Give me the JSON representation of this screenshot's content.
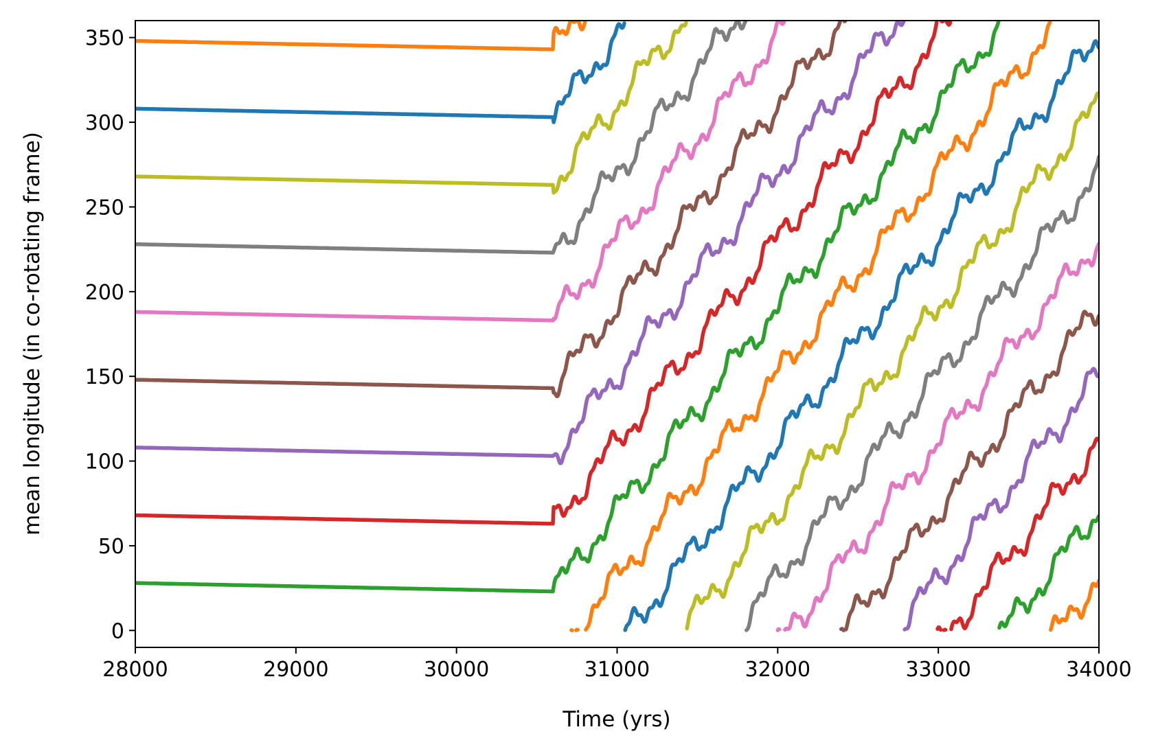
{
  "chart_data": {
    "type": "line",
    "title": "",
    "xlabel": "Time (yrs)",
    "ylabel": "mean longitude (in co-rotating frame)",
    "xlim": [
      28000,
      34000
    ],
    "ylim": [
      -10,
      360
    ],
    "xticks": [
      28000,
      29000,
      30000,
      31000,
      32000,
      33000,
      34000
    ],
    "yticks": [
      0,
      50,
      100,
      150,
      200,
      250,
      300,
      350
    ],
    "grid": false,
    "legend": "none",
    "breakout_time": 30600,
    "drift_rate_deg_per_yr": 0.12,
    "palette": [
      "#2ca02c",
      "#d62728",
      "#9467bd",
      "#8c564b",
      "#e377c2",
      "#7f7f7f",
      "#bcbd22",
      "#1f77b4",
      "#ff7f0e"
    ],
    "series": [
      {
        "color": "#2ca02c",
        "start_value": 28,
        "value_at_breakout": 23
      },
      {
        "color": "#d62728",
        "start_value": 68,
        "value_at_breakout": 63
      },
      {
        "color": "#9467bd",
        "start_value": 108,
        "value_at_breakout": 103
      },
      {
        "color": "#8c564b",
        "start_value": 148,
        "value_at_breakout": 143
      },
      {
        "color": "#e377c2",
        "start_value": 188,
        "value_at_breakout": 183
      },
      {
        "color": "#7f7f7f",
        "start_value": 228,
        "value_at_breakout": 223
      },
      {
        "color": "#bcbd22",
        "start_value": 268,
        "value_at_breakout": 263
      },
      {
        "color": "#1f77b4",
        "start_value": 308,
        "value_at_breakout": 303
      },
      {
        "color": "#ff7f0e",
        "start_value": 348,
        "value_at_breakout": 343
      }
    ]
  }
}
